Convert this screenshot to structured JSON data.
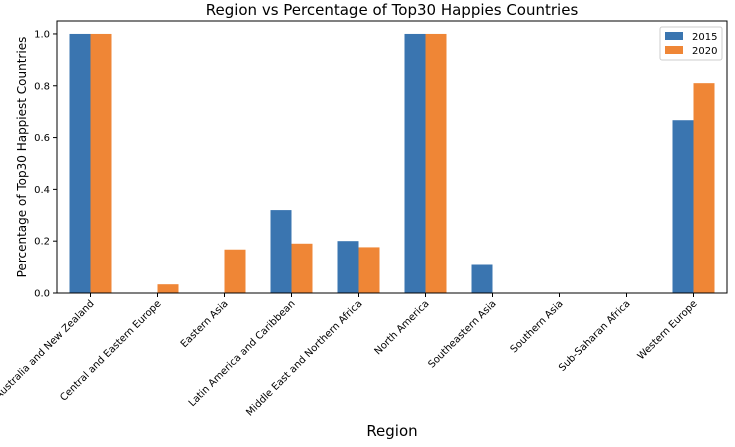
{
  "chart_data": {
    "type": "bar",
    "title": "Region vs Percentage of Top30 Happies Countries",
    "xlabel": "Region",
    "ylabel": "Percentage of Top30 Happiest Countries",
    "categories": [
      "Australia and New Zealand",
      "Central and Eastern Europe",
      "Eastern Asia",
      "Latin America and Caribbean",
      "Middle East and Northern Africa",
      "North America",
      "Southeastern Asia",
      "Southern Asia",
      "Sub-Saharan Africa",
      "Western Europe"
    ],
    "series": [
      {
        "name": "2015",
        "color": "#3a75b0",
        "values": [
          1.0,
          0.0,
          0.0,
          0.32,
          0.2,
          1.0,
          0.11,
          0.0,
          0.0,
          0.667
        ]
      },
      {
        "name": "2020",
        "color": "#ef8636",
        "values": [
          1.0,
          0.034,
          0.167,
          0.19,
          0.176,
          1.0,
          0.0,
          0.0,
          0.0,
          0.81
        ]
      }
    ],
    "ylim": [
      0,
      1.05
    ],
    "yticks": [
      "0.0",
      "0.2",
      "0.4",
      "0.6",
      "0.8",
      "1.0"
    ],
    "grid": false,
    "legend_position": "top-right"
  }
}
